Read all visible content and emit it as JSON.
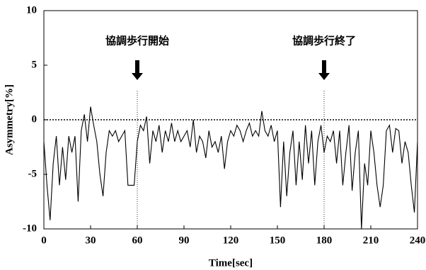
{
  "chart_data": {
    "type": "line",
    "xlabel": "Time[sec]",
    "ylabel": "Asymmetry[%]",
    "xlim": [
      0,
      240
    ],
    "ylim": [
      -10,
      10
    ],
    "xticks": [
      0,
      30,
      60,
      90,
      120,
      150,
      180,
      210,
      240
    ],
    "yticks": [
      -10,
      -5,
      0,
      5,
      10
    ],
    "reference_y": 0,
    "annotations": [
      {
        "text": "協調歩行開始",
        "x": 60
      },
      {
        "text": "協調歩行終了",
        "x": 180
      }
    ],
    "series": [
      {
        "color": "#000000",
        "x": [
          0,
          2,
          4,
          6,
          8,
          10,
          12,
          14,
          16,
          18,
          20,
          22,
          24,
          26,
          28,
          30,
          32,
          34,
          36,
          38,
          40,
          42,
          44,
          46,
          48,
          50,
          52,
          54,
          56,
          58,
          60,
          62,
          64,
          66,
          68,
          70,
          72,
          74,
          76,
          78,
          80,
          82,
          84,
          86,
          88,
          90,
          92,
          94,
          96,
          98,
          100,
          102,
          104,
          106,
          108,
          110,
          112,
          114,
          116,
          118,
          120,
          122,
          124,
          126,
          128,
          130,
          132,
          134,
          136,
          138,
          140,
          142,
          144,
          146,
          148,
          150,
          152,
          154,
          156,
          158,
          160,
          162,
          164,
          166,
          168,
          170,
          172,
          174,
          176,
          178,
          180,
          182,
          184,
          186,
          188,
          190,
          192,
          194,
          196,
          198,
          200,
          202,
          204,
          206,
          208,
          210,
          212,
          214,
          216,
          218,
          220,
          222,
          224,
          226,
          228,
          230,
          232,
          234,
          236,
          238,
          240
        ],
        "values": [
          -2,
          -6,
          -9.2,
          -4,
          -1.5,
          -6,
          -2.5,
          -5.5,
          -1.5,
          -3,
          -1.5,
          -7.5,
          -1,
          0.5,
          -2,
          1.2,
          -0.5,
          -2,
          -5,
          -7,
          -3,
          -1,
          -1.5,
          -1,
          -2,
          -1.5,
          -1,
          -6,
          -6,
          -6,
          -2,
          -0.5,
          -1,
          0.3,
          -4,
          -1,
          -2,
          -0.5,
          -3,
          -1,
          -2,
          -0.3,
          -2,
          -1,
          -2,
          -1.5,
          -1,
          -2.5,
          0,
          -3,
          -1.5,
          -2,
          -3.5,
          -1,
          -2.5,
          -2,
          -3,
          -1.5,
          -4.5,
          -2,
          -1,
          -1.5,
          -0.5,
          -1,
          -2,
          -1,
          -0.3,
          -1.5,
          -1,
          -1.5,
          0.8,
          -1,
          -1.5,
          -0.5,
          -2,
          -1,
          -8,
          -2,
          -7,
          -3,
          -1,
          -6,
          -2,
          -5.5,
          -0.5,
          -4,
          -1,
          -6,
          -2,
          -0.5,
          -3,
          -1.5,
          -2,
          -1,
          -4,
          -1,
          -6,
          -3,
          -0.5,
          -6.5,
          -3,
          -1,
          -10,
          -4,
          -6,
          -1,
          -3,
          -6,
          -8,
          -6,
          -1,
          -0.5,
          -3,
          -0.8,
          -1,
          -4,
          -2,
          -3,
          -6,
          -8.5,
          -2
        ]
      }
    ]
  }
}
